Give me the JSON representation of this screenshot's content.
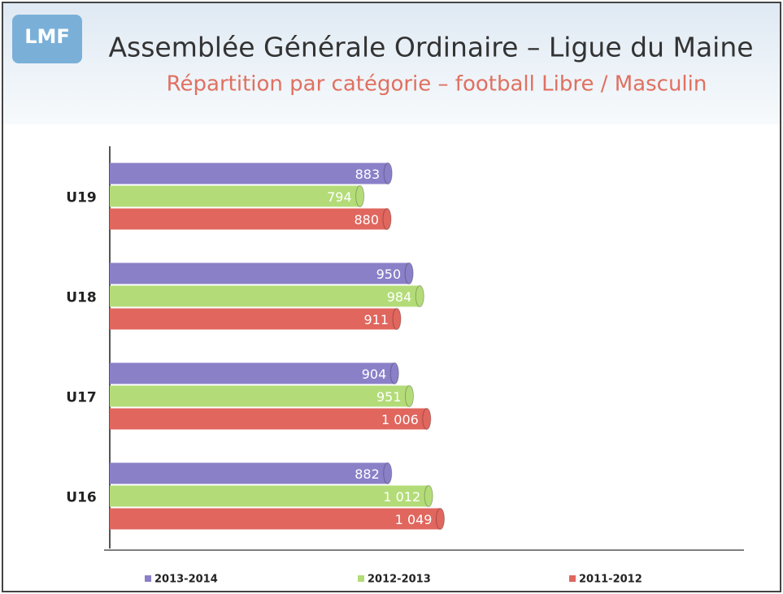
{
  "logo": "LMF",
  "chart_data": {
    "type": "barh",
    "title": "Assemblée Générale Ordinaire – Ligue du Maine",
    "subtitle": "Répartition par catégorie – football Libre / Masculin",
    "categories": [
      "U19",
      "U18",
      "U17",
      "U16"
    ],
    "xlim": [
      0,
      2000
    ],
    "series": [
      {
        "name": "2013-2014",
        "color": "#8a80c8",
        "values": [
          883,
          950,
          904,
          882
        ],
        "value_labels": [
          "883",
          "950",
          "904",
          "882"
        ]
      },
      {
        "name": "2012-2013",
        "color": "#b3dc78",
        "values": [
          794,
          984,
          951,
          1012
        ],
        "value_labels": [
          "794",
          "984",
          "951",
          "1 012"
        ]
      },
      {
        "name": "2011-2012",
        "color": "#e0665e",
        "values": [
          880,
          911,
          1006,
          1049
        ],
        "value_labels": [
          "880",
          "911",
          "1 006",
          "1 049"
        ]
      }
    ],
    "legend": "bottom"
  }
}
